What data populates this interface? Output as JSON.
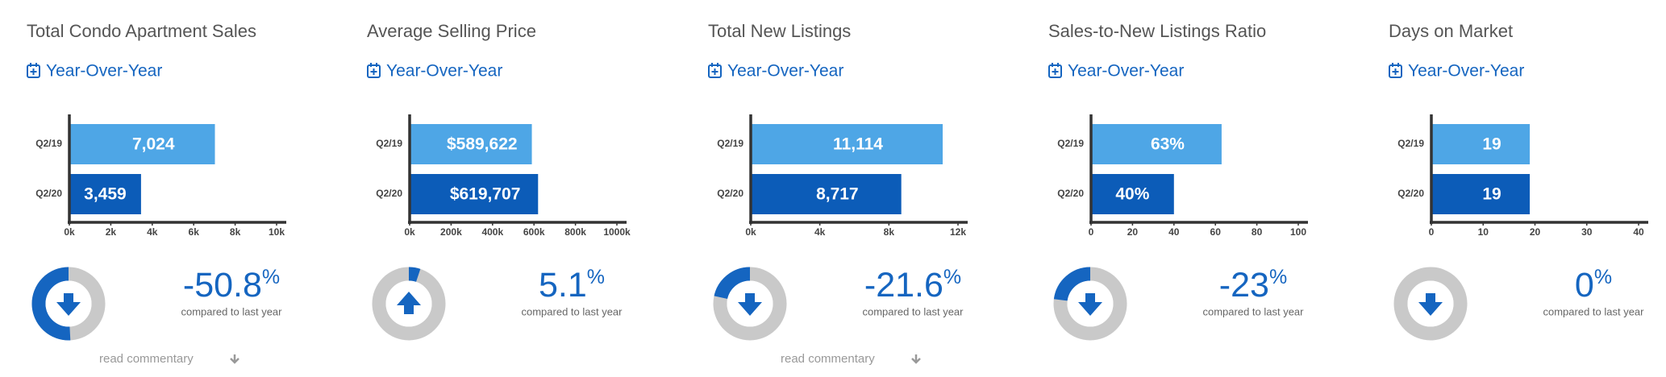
{
  "chart_data": [
    {
      "type": "bar",
      "title": "Total Condo Apartment Sales",
      "period_link": "Year-Over-Year",
      "categories": [
        "Q2/19",
        "Q2/20"
      ],
      "values": [
        7024,
        3459
      ],
      "value_labels": [
        "7,024",
        "3,459"
      ],
      "colors": [
        "#4ea6e6",
        "#0c5cb8"
      ],
      "xlim": [
        0,
        10000
      ],
      "xticks": [
        {
          "value": 0,
          "label": "0k"
        },
        {
          "value": 2000,
          "label": "2k"
        },
        {
          "value": 4000,
          "label": "4k"
        },
        {
          "value": 6000,
          "label": "6k"
        },
        {
          "value": 8000,
          "label": "8k"
        },
        {
          "value": 10000,
          "label": "10k"
        }
      ],
      "grid": false,
      "change": {
        "value": -50.8,
        "label": "-50.8",
        "unit": "%"
      },
      "direction": "down",
      "comparison_note": "compared to last year",
      "commentary_link": "read commentary"
    },
    {
      "type": "bar",
      "title": "Average Selling Price",
      "period_link": "Year-Over-Year",
      "categories": [
        "Q2/19",
        "Q2/20"
      ],
      "values": [
        589622,
        619707
      ],
      "value_labels": [
        "$589,622",
        "$619,707"
      ],
      "colors": [
        "#4ea6e6",
        "#0c5cb8"
      ],
      "xlim": [
        0,
        1000000
      ],
      "xticks": [
        {
          "value": 0,
          "label": "0k"
        },
        {
          "value": 200000,
          "label": "200k"
        },
        {
          "value": 400000,
          "label": "400k"
        },
        {
          "value": 600000,
          "label": "600k"
        },
        {
          "value": 800000,
          "label": "800k"
        },
        {
          "value": 1000000,
          "label": "1000k"
        }
      ],
      "grid": false,
      "change": {
        "value": 5.1,
        "label": "5.1",
        "unit": "%"
      },
      "direction": "up",
      "comparison_note": "compared to last year"
    },
    {
      "type": "bar",
      "title": "Total New Listings",
      "period_link": "Year-Over-Year",
      "categories": [
        "Q2/19",
        "Q2/20"
      ],
      "values": [
        11114,
        8717
      ],
      "value_labels": [
        "11,114",
        "8,717"
      ],
      "colors": [
        "#4ea6e6",
        "#0c5cb8"
      ],
      "xlim": [
        0,
        12000
      ],
      "xticks": [
        {
          "value": 0,
          "label": "0k"
        },
        {
          "value": 4000,
          "label": "4k"
        },
        {
          "value": 8000,
          "label": "8k"
        },
        {
          "value": 12000,
          "label": "12k"
        }
      ],
      "grid": false,
      "change": {
        "value": -21.6,
        "label": "-21.6",
        "unit": "%"
      },
      "direction": "down",
      "comparison_note": "compared to last year",
      "commentary_link": "read commentary"
    },
    {
      "type": "bar",
      "title": "Sales-to-New Listings Ratio",
      "period_link": "Year-Over-Year",
      "categories": [
        "Q2/19",
        "Q2/20"
      ],
      "values": [
        63,
        40
      ],
      "value_labels": [
        "63%",
        "40%"
      ],
      "colors": [
        "#4ea6e6",
        "#0c5cb8"
      ],
      "xlim": [
        0,
        100
      ],
      "xticks": [
        0,
        20,
        40,
        60,
        80,
        100
      ],
      "grid": false,
      "change": {
        "value": -23,
        "label": "-23",
        "unit": "%"
      },
      "direction": "down",
      "comparison_note": "compared to last year"
    },
    {
      "type": "bar",
      "title": "Days on Market",
      "period_link": "Year-Over-Year",
      "categories": [
        "Q2/19",
        "Q2/20"
      ],
      "values": [
        19,
        19
      ],
      "colors": [
        "#4ea6e6",
        "#0c5cb8"
      ],
      "xlim": [
        0,
        40
      ],
      "xticks": [
        0,
        10,
        20,
        30,
        40
      ],
      "grid": false,
      "change": {
        "value": 0,
        "label": "0",
        "unit": "%"
      },
      "direction": "down",
      "comparison_note": "compared to last year"
    }
  ]
}
